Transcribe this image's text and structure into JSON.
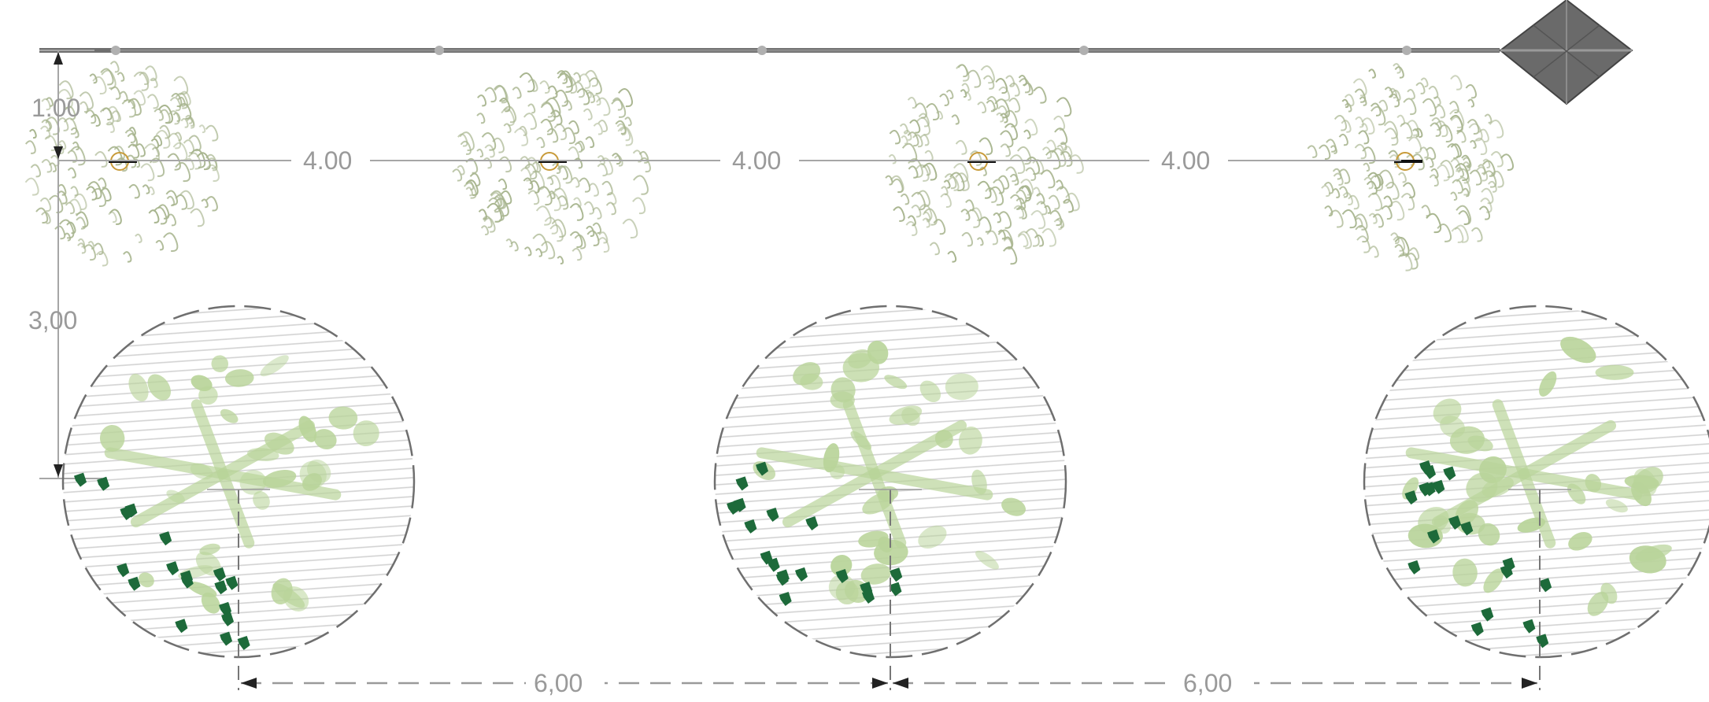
{
  "drawing": {
    "type": "landscape planting plan",
    "top_row": {
      "element": "tree symbol",
      "count": 4,
      "spacing_labels": [
        "4.00",
        "4.00",
        "4.00"
      ],
      "setback_label": "1.00"
    },
    "bottom_row": {
      "element": "shrub / planting bed circle",
      "count": 3,
      "spacing_labels": [
        "6,00",
        "6,00"
      ],
      "row_offset_label": "3,00"
    },
    "north_marker": "diamond-marker",
    "colors": {
      "dimension": "#9a9a9a",
      "tree_outline": "#a8b58f",
      "hatch": "#d4d4d4",
      "light_foliage": "#b9d49a",
      "dark_foliage": "#1d6a3a",
      "edge_line": "#6f6f6f",
      "marker": "#5b5b5b",
      "center_mark": "#c89b3a"
    }
  }
}
